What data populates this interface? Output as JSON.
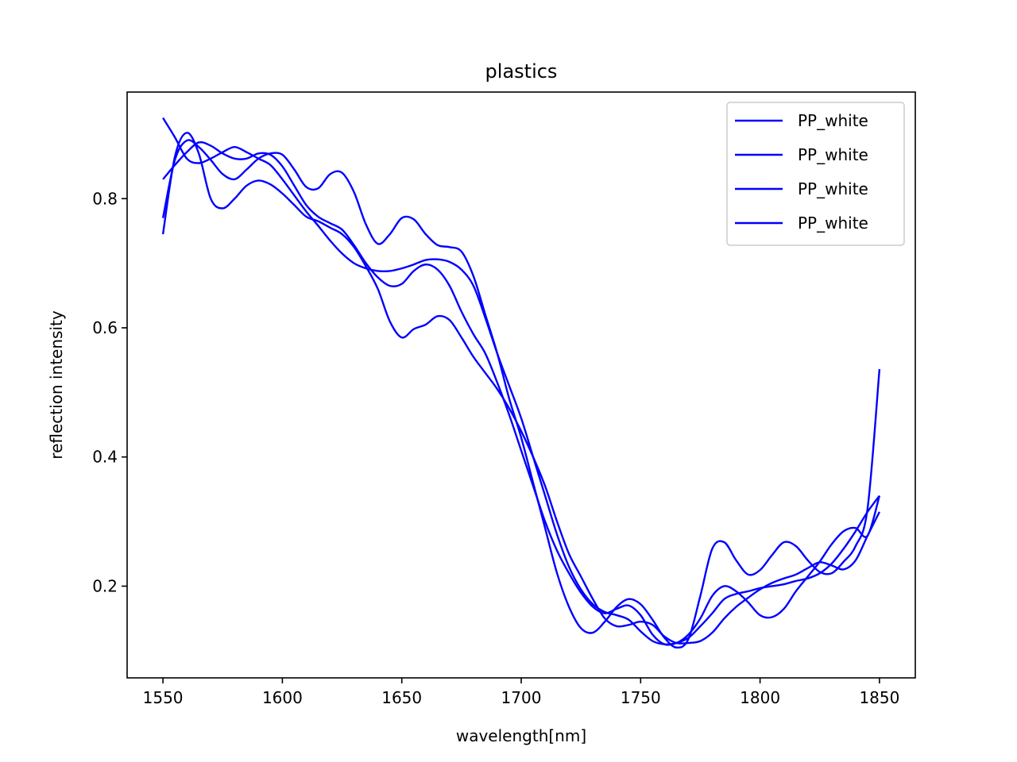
{
  "chart_data": {
    "type": "line",
    "title": "plastics",
    "xlabel": "wavelength[nm]",
    "ylabel": "reflection intensity",
    "xlim": [
      1535,
      1865
    ],
    "ylim": [
      0.058,
      0.965
    ],
    "xticks": [
      1550,
      1600,
      1650,
      1700,
      1750,
      1800,
      1850
    ],
    "yticks": [
      0.2,
      0.4,
      0.6,
      0.8
    ],
    "ytick_labels": [
      "0.2",
      "0.4",
      "0.6",
      "0.8"
    ],
    "grid": false,
    "legend_position": "top-right",
    "series_color": "#0000ff",
    "series": [
      {
        "name": "PP_white",
        "x": [
          1550,
          1555,
          1560,
          1565,
          1570,
          1575,
          1580,
          1585,
          1590,
          1595,
          1600,
          1605,
          1610,
          1615,
          1620,
          1625,
          1630,
          1635,
          1640,
          1645,
          1650,
          1655,
          1660,
          1665,
          1670,
          1675,
          1680,
          1685,
          1690,
          1695,
          1700,
          1705,
          1710,
          1715,
          1720,
          1725,
          1730,
          1735,
          1740,
          1745,
          1750,
          1755,
          1760,
          1765,
          1770,
          1775,
          1780,
          1785,
          1790,
          1795,
          1800,
          1805,
          1810,
          1815,
          1820,
          1825,
          1830,
          1835,
          1840,
          1845,
          1850
        ],
        "y": [
          0.925,
          0.895,
          0.862,
          0.855,
          0.862,
          0.872,
          0.88,
          0.872,
          0.862,
          0.852,
          0.83,
          0.805,
          0.78,
          0.758,
          0.735,
          0.715,
          0.7,
          0.692,
          0.688,
          0.688,
          0.692,
          0.698,
          0.705,
          0.706,
          0.702,
          0.69,
          0.665,
          0.615,
          0.56,
          0.51,
          0.46,
          0.4,
          0.34,
          0.28,
          0.23,
          0.195,
          0.172,
          0.16,
          0.155,
          0.148,
          0.13,
          0.115,
          0.11,
          0.112,
          0.12,
          0.138,
          0.158,
          0.18,
          0.188,
          0.192,
          0.197,
          0.2,
          0.203,
          0.208,
          0.212,
          0.22,
          0.235,
          0.258,
          0.285,
          0.315,
          0.34
        ]
      },
      {
        "name": "PP_white",
        "x": [
          1550,
          1555,
          1560,
          1565,
          1570,
          1575,
          1580,
          1585,
          1590,
          1595,
          1600,
          1605,
          1610,
          1615,
          1620,
          1625,
          1630,
          1635,
          1640,
          1645,
          1650,
          1655,
          1660,
          1665,
          1670,
          1675,
          1680,
          1685,
          1690,
          1695,
          1700,
          1705,
          1710,
          1715,
          1720,
          1725,
          1730,
          1735,
          1740,
          1745,
          1750,
          1755,
          1760,
          1765,
          1770,
          1775,
          1780,
          1785,
          1790,
          1795,
          1800,
          1805,
          1810,
          1815,
          1820,
          1825,
          1830,
          1835,
          1840,
          1845,
          1850
        ],
        "y": [
          0.77,
          0.86,
          0.89,
          0.88,
          0.86,
          0.838,
          0.83,
          0.845,
          0.862,
          0.87,
          0.868,
          0.845,
          0.818,
          0.816,
          0.838,
          0.84,
          0.81,
          0.76,
          0.73,
          0.745,
          0.77,
          0.768,
          0.745,
          0.728,
          0.725,
          0.718,
          0.68,
          0.62,
          0.56,
          0.49,
          0.43,
          0.36,
          0.29,
          0.22,
          0.168,
          0.135,
          0.128,
          0.145,
          0.168,
          0.18,
          0.172,
          0.148,
          0.12,
          0.105,
          0.118,
          0.185,
          0.258,
          0.268,
          0.24,
          0.218,
          0.225,
          0.248,
          0.268,
          0.262,
          0.24,
          0.222,
          0.22,
          0.238,
          0.262,
          0.32,
          0.536
        ]
      },
      {
        "name": "PP_white",
        "x": [
          1550,
          1555,
          1560,
          1565,
          1570,
          1575,
          1580,
          1585,
          1590,
          1595,
          1600,
          1605,
          1610,
          1615,
          1620,
          1625,
          1630,
          1635,
          1640,
          1645,
          1650,
          1655,
          1660,
          1665,
          1670,
          1675,
          1680,
          1685,
          1690,
          1695,
          1700,
          1705,
          1710,
          1715,
          1720,
          1725,
          1730,
          1735,
          1740,
          1745,
          1750,
          1755,
          1760,
          1765,
          1770,
          1775,
          1780,
          1785,
          1790,
          1795,
          1800,
          1805,
          1810,
          1815,
          1820,
          1825,
          1830,
          1835,
          1840,
          1845,
          1850
        ],
        "y": [
          0.83,
          0.852,
          0.872,
          0.887,
          0.882,
          0.87,
          0.862,
          0.862,
          0.87,
          0.868,
          0.85,
          0.82,
          0.79,
          0.772,
          0.762,
          0.752,
          0.728,
          0.7,
          0.678,
          0.665,
          0.668,
          0.688,
          0.698,
          0.69,
          0.665,
          0.625,
          0.59,
          0.56,
          0.515,
          0.465,
          0.41,
          0.355,
          0.3,
          0.255,
          0.22,
          0.19,
          0.168,
          0.158,
          0.165,
          0.17,
          0.155,
          0.125,
          0.11,
          0.112,
          0.125,
          0.15,
          0.185,
          0.2,
          0.192,
          0.175,
          0.155,
          0.152,
          0.165,
          0.192,
          0.215,
          0.238,
          0.265,
          0.285,
          0.29,
          0.278,
          0.34
        ]
      },
      {
        "name": "PP_white",
        "x": [
          1550,
          1555,
          1560,
          1565,
          1570,
          1575,
          1580,
          1585,
          1590,
          1595,
          1600,
          1605,
          1610,
          1615,
          1620,
          1625,
          1630,
          1635,
          1640,
          1645,
          1650,
          1655,
          1660,
          1665,
          1670,
          1675,
          1680,
          1685,
          1690,
          1695,
          1700,
          1705,
          1710,
          1715,
          1720,
          1725,
          1730,
          1735,
          1740,
          1745,
          1750,
          1755,
          1760,
          1765,
          1770,
          1775,
          1780,
          1785,
          1790,
          1795,
          1800,
          1805,
          1810,
          1815,
          1820,
          1825,
          1830,
          1835,
          1840,
          1845,
          1850
        ],
        "y": [
          0.745,
          0.865,
          0.902,
          0.87,
          0.8,
          0.785,
          0.8,
          0.82,
          0.828,
          0.822,
          0.808,
          0.79,
          0.772,
          0.765,
          0.755,
          0.745,
          0.725,
          0.695,
          0.66,
          0.61,
          0.585,
          0.598,
          0.605,
          0.618,
          0.612,
          0.585,
          0.555,
          0.53,
          0.505,
          0.475,
          0.44,
          0.4,
          0.355,
          0.3,
          0.25,
          0.215,
          0.18,
          0.15,
          0.138,
          0.14,
          0.145,
          0.14,
          0.122,
          0.112,
          0.112,
          0.115,
          0.128,
          0.15,
          0.168,
          0.182,
          0.195,
          0.205,
          0.212,
          0.218,
          0.228,
          0.237,
          0.232,
          0.226,
          0.24,
          0.278,
          0.315
        ]
      }
    ]
  }
}
